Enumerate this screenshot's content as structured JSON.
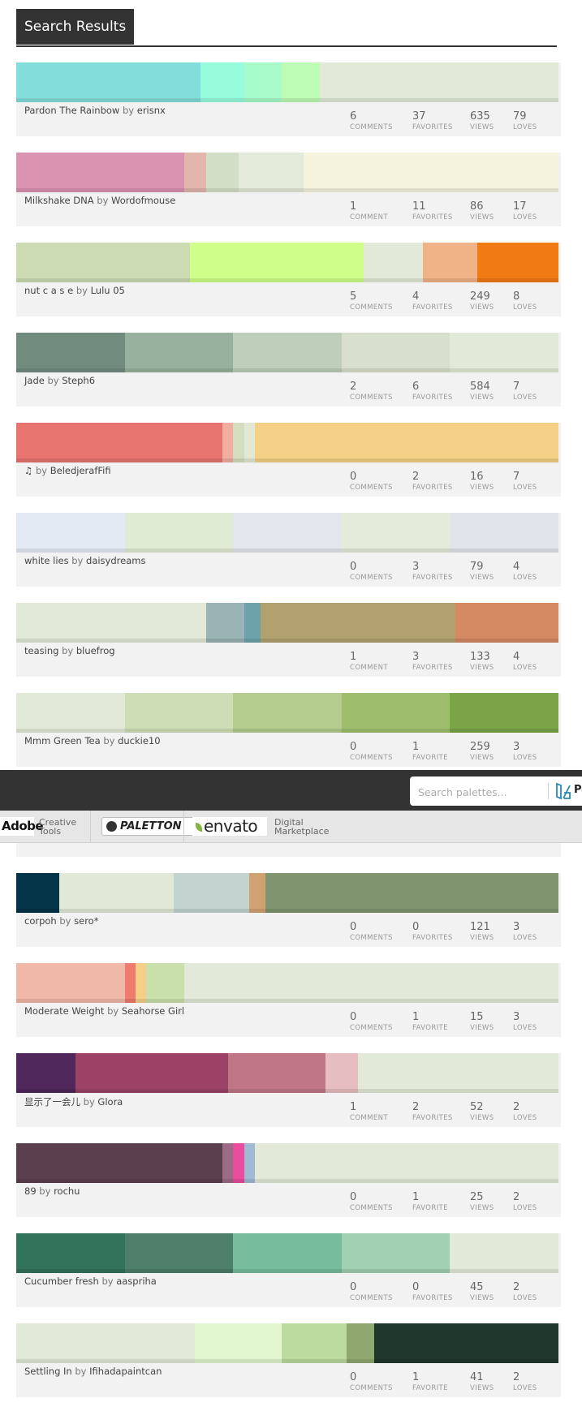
{
  "page": {
    "title": "Search Results"
  },
  "labels": {
    "by": "by",
    "comments": "COMMENTS",
    "comment": "COMMENT",
    "favorites": "FAVORITES",
    "favorite": "FAVORITE",
    "views": "VIEWS",
    "loves": "LOVES"
  },
  "header": {
    "search_placeholder": "Search palettes...",
    "search_button_text": "Pa",
    "ads": [
      {
        "name": "Adobe",
        "tagline_1": "Creative",
        "tagline_2": "Tools"
      },
      {
        "name": "PALETTON"
      },
      {
        "name": "envato",
        "tagline_1": "Digital",
        "tagline_2": "Marketplace"
      }
    ]
  },
  "palettes": [
    {
      "name": "Pardon The Rainbow",
      "author": "erisnx",
      "comments": 6,
      "favorites": 37,
      "views": 635,
      "loves": 79,
      "colors": [
        {
          "hex": "#83DDDA",
          "w": 34
        },
        {
          "hex": "#97FCDC",
          "w": 8
        },
        {
          "hex": "#A7FBCA",
          "w": 7
        },
        {
          "hex": "#BDFCB4",
          "w": 7
        },
        {
          "hex": "#E3E9D8",
          "w": 44
        }
      ]
    },
    {
      "name": "Milkshake DNA",
      "author": "Wordofmouse",
      "comments": 1,
      "favorites": 11,
      "views": 86,
      "loves": 17,
      "colors": [
        {
          "hex": "#DB93B2",
          "w": 31
        },
        {
          "hex": "#E2B6AC",
          "w": 4
        },
        {
          "hex": "#D3DEC7",
          "w": 6
        },
        {
          "hex": "#E4EAD9",
          "w": 12
        },
        {
          "hex": "#F3F3DE",
          "w": 47
        }
      ]
    },
    {
      "name": "nut c a s e",
      "author": "Lulu 05",
      "comments": 5,
      "favorites": 4,
      "views": 249,
      "loves": 8,
      "colors": [
        {
          "hex": "#CCDBB2",
          "w": 32
        },
        {
          "hex": "#CFFE8A",
          "w": 32
        },
        {
          "hex": "#E3E9D8",
          "w": 11
        },
        {
          "hex": "#F0B387",
          "w": 10
        },
        {
          "hex": "#F07A14",
          "w": 15
        }
      ]
    },
    {
      "name": "Jade",
      "author": "Steph6",
      "comments": 2,
      "favorites": 6,
      "views": 584,
      "loves": 7,
      "colors": [
        {
          "hex": "#718B7F",
          "w": 20
        },
        {
          "hex": "#97B19E",
          "w": 20
        },
        {
          "hex": "#BFCDBB",
          "w": 20
        },
        {
          "hex": "#D9DFCD",
          "w": 20
        },
        {
          "hex": "#E3E9D8",
          "w": 20
        }
      ]
    },
    {
      "name": "♫",
      "author": "BeledjerafFifi",
      "comments": 0,
      "favorites": 2,
      "views": 16,
      "loves": 7,
      "colors": [
        {
          "hex": "#E87470",
          "w": 38
        },
        {
          "hex": "#F1AE9F",
          "w": 2
        },
        {
          "hex": "#D3DDBF",
          "w": 2
        },
        {
          "hex": "#E2E8D4",
          "w": 2
        },
        {
          "hex": "#F4CF86",
          "w": 56
        }
      ]
    },
    {
      "name": "white lies",
      "author": "daisydreams",
      "comments": 0,
      "favorites": 3,
      "views": 79,
      "loves": 4,
      "colors": [
        {
          "hex": "#E4EAF3",
          "w": 20
        },
        {
          "hex": "#E0EBD4",
          "w": 20
        },
        {
          "hex": "#E1E7EC",
          "w": 20
        },
        {
          "hex": "#E3ECD9",
          "w": 20
        },
        {
          "hex": "#E1E5EB",
          "w": 20
        }
      ]
    },
    {
      "name": "teasing",
      "author": "bluefrog",
      "comments": 1,
      "favorites": 3,
      "views": 133,
      "loves": 4,
      "colors": [
        {
          "hex": "#E3E9D8",
          "w": 35
        },
        {
          "hex": "#9AB3B4",
          "w": 7
        },
        {
          "hex": "#6CA3AA",
          "w": 3
        },
        {
          "hex": "#B1A16F",
          "w": 36
        },
        {
          "hex": "#D48963",
          "w": 19
        }
      ]
    },
    {
      "name": "Mmm Green Tea",
      "author": "duckie10",
      "comments": 0,
      "favorites": 1,
      "views": 259,
      "loves": 3,
      "colors": [
        {
          "hex": "#E3E9D8",
          "w": 20
        },
        {
          "hex": "#CEDDB5",
          "w": 20
        },
        {
          "hex": "#B5CC8F",
          "w": 20
        },
        {
          "hex": "#9EBD6D",
          "w": 20
        },
        {
          "hex": "#7BA448",
          "w": 20
        }
      ]
    },
    {
      "name": "",
      "author": "",
      "comments": "",
      "favorites": "",
      "views": "",
      "loves": "",
      "colors": [
        {
          "hex": "#E3E9D8",
          "w": 100
        }
      ]
    },
    {
      "name": "corpoh",
      "author": "sero*",
      "comments": 0,
      "favorites": 0,
      "views": 121,
      "loves": 3,
      "colors": [
        {
          "hex": "#043447",
          "w": 8
        },
        {
          "hex": "#E2E8D7",
          "w": 21
        },
        {
          "hex": "#C2D3D0",
          "w": 14
        },
        {
          "hex": "#D0A272",
          "w": 3
        },
        {
          "hex": "#80956F",
          "w": 54
        }
      ]
    },
    {
      "name": "Moderate Weight",
      "author": "Seahorse Girl",
      "comments": 0,
      "favorites": 1,
      "views": 15,
      "loves": 3,
      "colors": [
        {
          "hex": "#F0B8A8",
          "w": 20
        },
        {
          "hex": "#EE7B6E",
          "w": 2
        },
        {
          "hex": "#F5CF88",
          "w": 2
        },
        {
          "hex": "#CAE0AB",
          "w": 7
        },
        {
          "hex": "#E3E9D8",
          "w": 69
        }
      ]
    },
    {
      "name": "显示了一会儿",
      "author": "Glora",
      "comments": 1,
      "favorites": 2,
      "views": 52,
      "loves": 2,
      "colors": [
        {
          "hex": "#50285B",
          "w": 11
        },
        {
          "hex": "#9C4266",
          "w": 28
        },
        {
          "hex": "#C07686",
          "w": 18
        },
        {
          "hex": "#E6BDC0",
          "w": 6
        },
        {
          "hex": "#E3E9D8",
          "w": 37
        }
      ]
    },
    {
      "name": "89",
      "author": "rochu",
      "comments": 0,
      "favorites": 1,
      "views": 25,
      "loves": 2,
      "colors": [
        {
          "hex": "#5A3F4D",
          "w": 38
        },
        {
          "hex": "#9C6B86",
          "w": 2
        },
        {
          "hex": "#EA4C9E",
          "w": 2
        },
        {
          "hex": "#9FBAD2",
          "w": 2
        },
        {
          "hex": "#E3E9D8",
          "w": 56
        }
      ]
    },
    {
      "name": "Cucumber fresh",
      "author": "aaspriha",
      "comments": 0,
      "favorites": 0,
      "views": 45,
      "loves": 2,
      "colors": [
        {
          "hex": "#33725B",
          "w": 20
        },
        {
          "hex": "#4D7F6A",
          "w": 20
        },
        {
          "hex": "#77BC9D",
          "w": 20
        },
        {
          "hex": "#A2D0B2",
          "w": 20
        },
        {
          "hex": "#E3E9D8",
          "w": 20
        }
      ]
    },
    {
      "name": "Settling In",
      "author": "Ifihadapaintcan",
      "comments": 0,
      "favorites": 1,
      "views": 41,
      "loves": 2,
      "colors": [
        {
          "hex": "#E3E9D8",
          "w": 33
        },
        {
          "hex": "#E2F7CF",
          "w": 16
        },
        {
          "hex": "#BCDB9F",
          "w": 12
        },
        {
          "hex": "#8FA870",
          "w": 5
        },
        {
          "hex": "#1F372C",
          "w": 34
        }
      ]
    }
  ]
}
